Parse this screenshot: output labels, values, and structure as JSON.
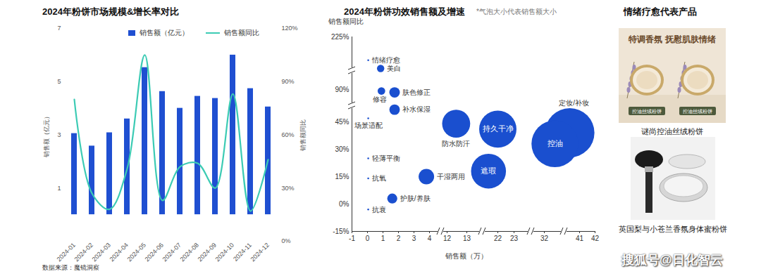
{
  "chart_data": [
    {
      "type": "bar",
      "title": "2024年粉饼市场规模&增长率对比",
      "categories": [
        "2024-01",
        "2024-02",
        "2024-03",
        "2024-04",
        "2024-05",
        "2024-06",
        "2024-07",
        "2024-08",
        "2024-09",
        "2024-10",
        "2024-11",
        "2024-12"
      ],
      "ylabel": "销售额（亿元）",
      "ylim": [
        -1,
        7
      ],
      "yticks": [
        1,
        3,
        5,
        7
      ],
      "y2label": "销售额同比",
      "y2lim": [
        0,
        120
      ],
      "y2ticks": [
        {
          "value": 0,
          "label": "0%"
        },
        {
          "value": 30,
          "label": "30%"
        },
        {
          "value": 60,
          "label": "60%"
        },
        {
          "value": 90,
          "label": "90%"
        },
        {
          "value": 120,
          "label": "120%"
        }
      ],
      "legend": "top",
      "series": [
        {
          "name": "销售额（亿元）",
          "type": "bar",
          "color": "#1f4fd1",
          "values": [
            3.05,
            2.58,
            3.08,
            3.6,
            5.53,
            4.63,
            4.0,
            4.45,
            4.37,
            6.0,
            4.74,
            4.05
          ]
        },
        {
          "name": "销售额同比",
          "type": "line",
          "axis": "y2",
          "color": "#3ccbb4",
          "values": [
            80,
            27,
            18,
            41,
            105,
            23,
            42,
            44,
            30,
            83,
            17,
            46
          ]
        }
      ],
      "source": "数据来源：魔镜洞察"
    },
    {
      "type": "scatter",
      "title": "2024年粉饼功效销售额及增速",
      "subtitle": "*气泡大小代表销售额大小",
      "xlabel": "销售额（万）",
      "ylabel": "销售额同比",
      "color": "#1a4fcf",
      "xlim": [
        -1,
        42
      ],
      "xticks": [
        -1,
        0,
        1,
        2,
        3,
        4,
        12,
        13,
        22,
        23,
        32,
        41,
        42
      ],
      "ylim": [
        -15,
        225
      ],
      "yticks": [
        {
          "value": -15,
          "label": "-15%"
        },
        {
          "value": 0,
          "label": "0%"
        },
        {
          "value": 15,
          "label": "15%"
        },
        {
          "value": 30,
          "label": "30%"
        },
        {
          "value": 45,
          "label": "45%"
        },
        {
          "value": 90,
          "label": "90%"
        },
        {
          "value": 225,
          "label": "225%"
        }
      ],
      "labels": [
        "情绪疗愈",
        "美白",
        "修容",
        "肤色修正",
        "补水保湿",
        "场景适配",
        "防水防汗",
        "持久干净",
        "定妆/补妆",
        "控油",
        "遮瑕",
        "干湿两用",
        "护肤/养肤",
        "轻薄平衡",
        "抗氧",
        "抗衰"
      ],
      "x": [
        0.05,
        0.85,
        0.9,
        1.75,
        1.75,
        0.05,
        12.46,
        22,
        38.5,
        34.7,
        19.3,
        3.8,
        1.6,
        0.05,
        0.05,
        0.05
      ],
      "y": [
        165,
        144,
        88,
        86,
        62,
        50,
        44,
        41,
        39,
        33,
        18,
        15,
        3,
        25,
        14,
        -3
      ],
      "sizes": [
        0.05,
        0.85,
        0.9,
        1.75,
        1.75,
        0.05,
        12.46,
        22,
        38.5,
        34.7,
        19.3,
        3.8,
        1.6,
        0.05,
        0.05,
        0.05
      ]
    }
  ],
  "panel": {
    "title": "情绪疗愈代表产品",
    "products": [
      {
        "headline": "特调香氛  抚慰肌肤情绪",
        "tags": [
          "控油丝绒粉饼",
          "控油丝绒粉饼"
        ],
        "caption": "谜尚控油丝绒粉饼"
      },
      {
        "caption": "英国梨与小苍兰香氛身体蜜粉饼"
      }
    ]
  },
  "watermark": "搜狐号@日化智云"
}
